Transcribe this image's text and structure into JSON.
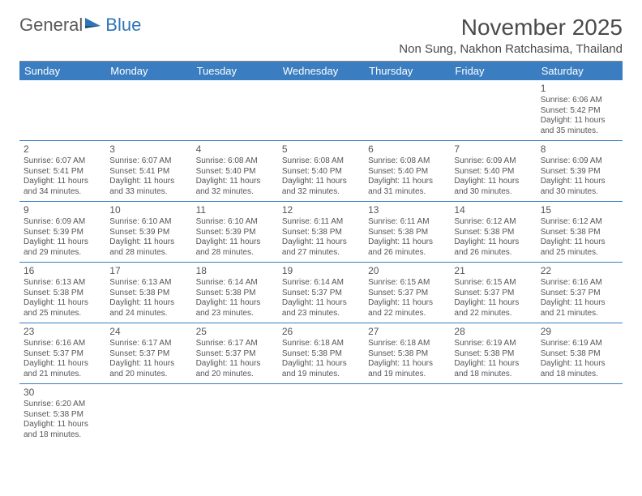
{
  "logo": {
    "text1": "General",
    "text2": "Blue"
  },
  "title": "November 2025",
  "location": "Non Sung, Nakhon Ratchasima, Thailand",
  "colors": {
    "header_bg": "#3a7ec1",
    "header_fg": "#ffffff",
    "row_border": "#3a7ec1",
    "text": "#555555",
    "title": "#4a4a4a"
  },
  "fonts": {
    "title_size": 28,
    "location_size": 15,
    "dayhdr_size": 13,
    "cell_size": 10,
    "daynum_size": 12
  },
  "day_headers": [
    "Sunday",
    "Monday",
    "Tuesday",
    "Wednesday",
    "Thursday",
    "Friday",
    "Saturday"
  ],
  "weeks": [
    [
      null,
      null,
      null,
      null,
      null,
      null,
      {
        "n": "1",
        "sr": "6:06 AM",
        "ss": "5:42 PM",
        "dl": "11 hours and 35 minutes."
      }
    ],
    [
      {
        "n": "2",
        "sr": "6:07 AM",
        "ss": "5:41 PM",
        "dl": "11 hours and 34 minutes."
      },
      {
        "n": "3",
        "sr": "6:07 AM",
        "ss": "5:41 PM",
        "dl": "11 hours and 33 minutes."
      },
      {
        "n": "4",
        "sr": "6:08 AM",
        "ss": "5:40 PM",
        "dl": "11 hours and 32 minutes."
      },
      {
        "n": "5",
        "sr": "6:08 AM",
        "ss": "5:40 PM",
        "dl": "11 hours and 32 minutes."
      },
      {
        "n": "6",
        "sr": "6:08 AM",
        "ss": "5:40 PM",
        "dl": "11 hours and 31 minutes."
      },
      {
        "n": "7",
        "sr": "6:09 AM",
        "ss": "5:40 PM",
        "dl": "11 hours and 30 minutes."
      },
      {
        "n": "8",
        "sr": "6:09 AM",
        "ss": "5:39 PM",
        "dl": "11 hours and 30 minutes."
      }
    ],
    [
      {
        "n": "9",
        "sr": "6:09 AM",
        "ss": "5:39 PM",
        "dl": "11 hours and 29 minutes."
      },
      {
        "n": "10",
        "sr": "6:10 AM",
        "ss": "5:39 PM",
        "dl": "11 hours and 28 minutes."
      },
      {
        "n": "11",
        "sr": "6:10 AM",
        "ss": "5:39 PM",
        "dl": "11 hours and 28 minutes."
      },
      {
        "n": "12",
        "sr": "6:11 AM",
        "ss": "5:38 PM",
        "dl": "11 hours and 27 minutes."
      },
      {
        "n": "13",
        "sr": "6:11 AM",
        "ss": "5:38 PM",
        "dl": "11 hours and 26 minutes."
      },
      {
        "n": "14",
        "sr": "6:12 AM",
        "ss": "5:38 PM",
        "dl": "11 hours and 26 minutes."
      },
      {
        "n": "15",
        "sr": "6:12 AM",
        "ss": "5:38 PM",
        "dl": "11 hours and 25 minutes."
      }
    ],
    [
      {
        "n": "16",
        "sr": "6:13 AM",
        "ss": "5:38 PM",
        "dl": "11 hours and 25 minutes."
      },
      {
        "n": "17",
        "sr": "6:13 AM",
        "ss": "5:38 PM",
        "dl": "11 hours and 24 minutes."
      },
      {
        "n": "18",
        "sr": "6:14 AM",
        "ss": "5:38 PM",
        "dl": "11 hours and 23 minutes."
      },
      {
        "n": "19",
        "sr": "6:14 AM",
        "ss": "5:37 PM",
        "dl": "11 hours and 23 minutes."
      },
      {
        "n": "20",
        "sr": "6:15 AM",
        "ss": "5:37 PM",
        "dl": "11 hours and 22 minutes."
      },
      {
        "n": "21",
        "sr": "6:15 AM",
        "ss": "5:37 PM",
        "dl": "11 hours and 22 minutes."
      },
      {
        "n": "22",
        "sr": "6:16 AM",
        "ss": "5:37 PM",
        "dl": "11 hours and 21 minutes."
      }
    ],
    [
      {
        "n": "23",
        "sr": "6:16 AM",
        "ss": "5:37 PM",
        "dl": "11 hours and 21 minutes."
      },
      {
        "n": "24",
        "sr": "6:17 AM",
        "ss": "5:37 PM",
        "dl": "11 hours and 20 minutes."
      },
      {
        "n": "25",
        "sr": "6:17 AM",
        "ss": "5:37 PM",
        "dl": "11 hours and 20 minutes."
      },
      {
        "n": "26",
        "sr": "6:18 AM",
        "ss": "5:38 PM",
        "dl": "11 hours and 19 minutes."
      },
      {
        "n": "27",
        "sr": "6:18 AM",
        "ss": "5:38 PM",
        "dl": "11 hours and 19 minutes."
      },
      {
        "n": "28",
        "sr": "6:19 AM",
        "ss": "5:38 PM",
        "dl": "11 hours and 18 minutes."
      },
      {
        "n": "29",
        "sr": "6:19 AM",
        "ss": "5:38 PM",
        "dl": "11 hours and 18 minutes."
      }
    ],
    [
      {
        "n": "30",
        "sr": "6:20 AM",
        "ss": "5:38 PM",
        "dl": "11 hours and 18 minutes."
      },
      null,
      null,
      null,
      null,
      null,
      null
    ]
  ],
  "labels": {
    "sunrise": "Sunrise: ",
    "sunset": "Sunset: ",
    "daylight": "Daylight: "
  }
}
